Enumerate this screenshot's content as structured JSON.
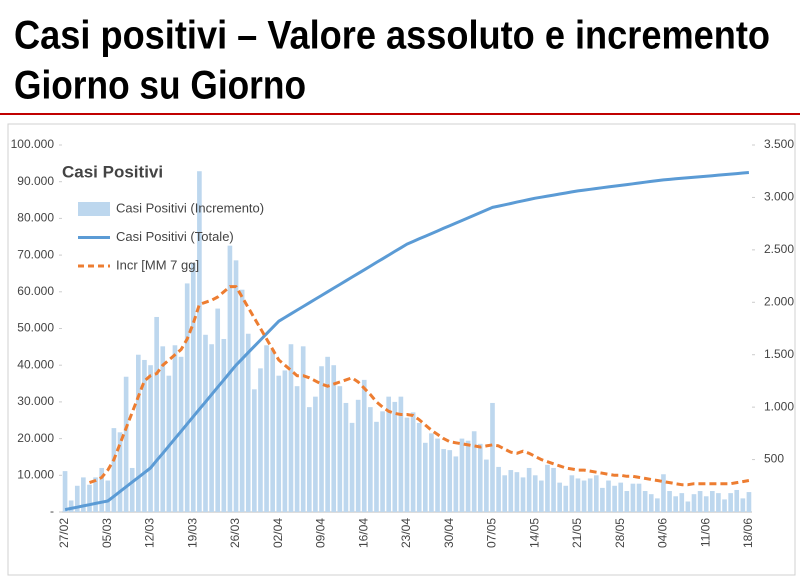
{
  "chart_data": {
    "type": "combo",
    "title_lines": [
      "Casi positivi – Valore assoluto e incremento",
      "Giorno su Giorno"
    ],
    "legend_title": "Casi Positivi",
    "categories": [
      "27/02",
      null,
      null,
      null,
      null,
      null,
      null,
      "05/03",
      null,
      null,
      null,
      null,
      null,
      null,
      "12/03",
      null,
      null,
      null,
      null,
      null,
      null,
      "19/03",
      null,
      null,
      null,
      null,
      null,
      null,
      "26/03",
      null,
      null,
      null,
      null,
      null,
      null,
      "02/04",
      null,
      null,
      null,
      null,
      null,
      null,
      "09/04",
      null,
      null,
      null,
      null,
      null,
      null,
      "16/04",
      null,
      null,
      null,
      null,
      null,
      null,
      "23/04",
      null,
      null,
      null,
      null,
      null,
      null,
      "30/04",
      null,
      null,
      null,
      null,
      null,
      null,
      "07/05",
      null,
      null,
      null,
      null,
      null,
      null,
      "14/05",
      null,
      null,
      null,
      null,
      null,
      null,
      "21/05",
      null,
      null,
      null,
      null,
      null,
      null,
      "28/05",
      null,
      null,
      null,
      null,
      null,
      null,
      "04/06",
      null,
      null,
      null,
      null,
      null,
      null,
      "11/06",
      null,
      null,
      null,
      null,
      null,
      null,
      "18/06"
    ],
    "series": [
      {
        "name": "Casi Positivi (Incremento)",
        "kind": "bar",
        "axis": "y2",
        "color": "#bdd7ee",
        "values": [
          390,
          110,
          250,
          330,
          260,
          330,
          420,
          300,
          800,
          760,
          1290,
          420,
          1500,
          1450,
          1400,
          1860,
          1580,
          1300,
          1590,
          1480,
          2180,
          2375,
          3250,
          1690,
          1600,
          1940,
          1650,
          2540,
          2400,
          2120,
          1700,
          1170,
          1370,
          1590,
          1550,
          1300,
          1350,
          1600,
          1200,
          1580,
          1000,
          1100,
          1390,
          1480,
          1400,
          1200,
          1040,
          850,
          1070,
          1260,
          1000,
          860,
          960,
          1100,
          1050,
          1100,
          900,
          950,
          850,
          660,
          750,
          700,
          600,
          590,
          530,
          700,
          680,
          770,
          650,
          500,
          1040,
          430,
          350,
          400,
          380,
          330,
          420,
          350,
          300,
          450,
          420,
          280,
          250,
          350,
          320,
          300,
          320,
          350,
          230,
          300,
          250,
          280,
          200,
          270,
          270,
          200,
          170,
          130,
          360,
          200,
          150,
          180,
          100,
          170,
          200,
          150,
          200,
          180,
          120,
          180,
          210,
          130,
          190
        ]
      },
      {
        "name": "Casi Positivi (Totale)",
        "kind": "line",
        "axis": "y",
        "color": "#5b9bd5",
        "values": [
          650,
          990,
          1320,
          1660,
          1990,
          2330,
          2660,
          3000,
          4290,
          5570,
          6860,
          8140,
          9430,
          10710,
          12000,
          14000,
          16000,
          18000,
          20000,
          22000,
          24000,
          26000,
          28000,
          30000,
          32000,
          34000,
          36000,
          38000,
          40000,
          41710,
          43430,
          45140,
          46860,
          48570,
          50290,
          52000,
          53000,
          54000,
          55000,
          56000,
          57000,
          58000,
          59000,
          60000,
          61000,
          62000,
          63000,
          64000,
          65000,
          66000,
          67000,
          68000,
          69000,
          70000,
          71000,
          72000,
          73000,
          73710,
          74430,
          75140,
          75860,
          76570,
          77290,
          78000,
          78710,
          79430,
          80140,
          80860,
          81570,
          82290,
          83000,
          83360,
          83710,
          84070,
          84430,
          84790,
          85140,
          85500,
          85790,
          86070,
          86360,
          86640,
          86930,
          87210,
          87500,
          87710,
          87930,
          88140,
          88360,
          88570,
          88790,
          89000,
          89210,
          89430,
          89640,
          89860,
          90070,
          90290,
          90500,
          90640,
          90790,
          90930,
          91070,
          91210,
          91360,
          91500,
          91640,
          91790,
          91930,
          92070,
          92210,
          92360,
          92500
        ]
      },
      {
        "name": "Incr [MM 7 gg]",
        "kind": "dashed",
        "axis": "y2",
        "color": "#ed7d31",
        "values": [
          null,
          null,
          null,
          null,
          280,
          300,
          330,
          400,
          500,
          650,
          800,
          950,
          1100,
          1250,
          1300,
          1320,
          1400,
          1450,
          1500,
          1550,
          1650,
          1800,
          1980,
          2000,
          2020,
          2050,
          2100,
          2150,
          2150,
          2050,
          1950,
          1850,
          1750,
          1650,
          1550,
          1450,
          1400,
          1350,
          1300,
          1300,
          1280,
          1250,
          1220,
          1200,
          1220,
          1240,
          1260,
          1280,
          1240,
          1180,
          1120,
          1050,
          1000,
          960,
          940,
          930,
          930,
          920,
          880,
          830,
          780,
          740,
          700,
          670,
          660,
          650,
          640,
          630,
          620,
          630,
          640,
          630,
          600,
          570,
          560,
          580,
          560,
          530,
          500,
          480,
          460,
          440,
          420,
          410,
          400,
          400,
          390,
          380,
          370,
          360,
          350,
          350,
          340,
          340,
          330,
          320,
          310,
          300,
          290,
          280,
          270,
          260,
          260,
          270,
          270,
          270,
          270,
          270,
          270,
          270,
          280,
          290,
          300
        ]
      }
    ],
    "ylim": [
      0,
      100000
    ],
    "yticks": [
      {
        "value": 0,
        "label": "-"
      },
      {
        "value": 10000,
        "label": "10.000"
      },
      {
        "value": 20000,
        "label": "20.000"
      },
      {
        "value": 30000,
        "label": "30.000"
      },
      {
        "value": 40000,
        "label": "40.000"
      },
      {
        "value": 50000,
        "label": "50.000"
      },
      {
        "value": 60000,
        "label": "60.000"
      },
      {
        "value": 70000,
        "label": "70.000"
      },
      {
        "value": 80000,
        "label": "80.000"
      },
      {
        "value": 90000,
        "label": "90.000"
      },
      {
        "value": 100000,
        "label": "100.000"
      }
    ],
    "y2lim": [
      0,
      3500
    ],
    "y2ticks": [
      500,
      {
        "value": 1000,
        "label": "1.000"
      },
      {
        "value": 1500,
        "label": "1.500"
      },
      {
        "value": 2000,
        "label": "2.000"
      },
      {
        "value": 2500,
        "label": "2.500"
      },
      {
        "value": 3000,
        "label": "3.000"
      },
      {
        "value": 3500,
        "label": "3.500"
      }
    ],
    "grid": false,
    "legend": "upper left"
  }
}
